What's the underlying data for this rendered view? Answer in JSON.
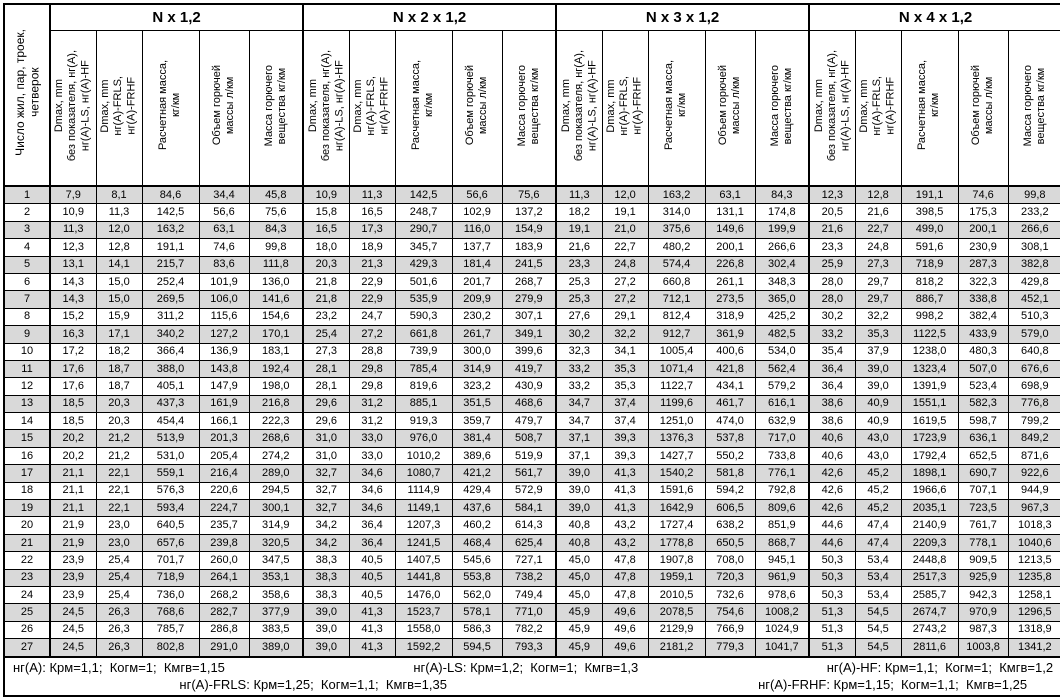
{
  "table": {
    "corner_header": "Число жил, пар, троек,\nчетверок",
    "groups": [
      {
        "title": "N x 1,2"
      },
      {
        "title": "N x 2 x 1,2"
      },
      {
        "title": "N x 3 x 1,2"
      },
      {
        "title": "N x 4 x 1,2"
      }
    ],
    "subheaders": [
      "Dmax, mm\nбез показателя, нг(А),\nнг(А)-LS, нг(А)-HF",
      "Dmax, mm\nнг(А)-FRLS,\nнг(А)-FRHF",
      "Расчетная масса,\nкг/км",
      "Объем горючей\nмассы л/км",
      "Масса горючего\nвещества кг/км"
    ],
    "rows": [
      [
        "1",
        "7,9",
        "8,1",
        "84,6",
        "34,4",
        "45,8",
        "10,9",
        "11,3",
        "142,5",
        "56,6",
        "75,6",
        "11,3",
        "12,0",
        "163,2",
        "63,1",
        "84,3",
        "12,3",
        "12,8",
        "191,1",
        "74,6",
        "99,8"
      ],
      [
        "2",
        "10,9",
        "11,3",
        "142,5",
        "56,6",
        "75,6",
        "15,8",
        "16,5",
        "248,7",
        "102,9",
        "137,2",
        "18,2",
        "19,1",
        "314,0",
        "131,1",
        "174,8",
        "20,5",
        "21,6",
        "398,5",
        "175,3",
        "233,2"
      ],
      [
        "3",
        "11,3",
        "12,0",
        "163,2",
        "63,1",
        "84,3",
        "16,5",
        "17,3",
        "290,7",
        "116,0",
        "154,9",
        "19,1",
        "21,0",
        "375,6",
        "149,6",
        "199,9",
        "21,6",
        "22,7",
        "499,0",
        "200,1",
        "266,6"
      ],
      [
        "4",
        "12,3",
        "12,8",
        "191,1",
        "74,6",
        "99,8",
        "18,0",
        "18,9",
        "345,7",
        "137,7",
        "183,9",
        "21,6",
        "22,7",
        "480,2",
        "200,1",
        "266,6",
        "23,3",
        "24,8",
        "591,6",
        "230,9",
        "308,1"
      ],
      [
        "5",
        "13,1",
        "14,1",
        "215,7",
        "83,6",
        "111,8",
        "20,3",
        "21,3",
        "429,3",
        "181,4",
        "241,5",
        "23,3",
        "24,8",
        "574,4",
        "226,8",
        "302,4",
        "25,9",
        "27,3",
        "718,9",
        "287,3",
        "382,8"
      ],
      [
        "6",
        "14,3",
        "15,0",
        "252,4",
        "101,9",
        "136,0",
        "21,8",
        "22,9",
        "501,6",
        "201,7",
        "268,7",
        "25,3",
        "27,2",
        "660,8",
        "261,1",
        "348,3",
        "28,0",
        "29,7",
        "818,2",
        "322,3",
        "429,8"
      ],
      [
        "7",
        "14,3",
        "15,0",
        "269,5",
        "106,0",
        "141,6",
        "21,8",
        "22,9",
        "535,9",
        "209,9",
        "279,9",
        "25,3",
        "27,2",
        "712,1",
        "273,5",
        "365,0",
        "28,0",
        "29,7",
        "886,7",
        "338,8",
        "452,1"
      ],
      [
        "8",
        "15,2",
        "15,9",
        "311,2",
        "115,6",
        "154,6",
        "23,2",
        "24,7",
        "590,3",
        "230,2",
        "307,1",
        "27,6",
        "29,1",
        "812,4",
        "318,9",
        "425,2",
        "30,2",
        "32,2",
        "998,2",
        "382,4",
        "510,3"
      ],
      [
        "9",
        "16,3",
        "17,1",
        "340,2",
        "127,2",
        "170,1",
        "25,4",
        "27,2",
        "661,8",
        "261,7",
        "349,1",
        "30,2",
        "32,2",
        "912,7",
        "361,9",
        "482,5",
        "33,2",
        "35,3",
        "1122,5",
        "433,9",
        "579,0"
      ],
      [
        "10",
        "17,2",
        "18,2",
        "366,4",
        "136,9",
        "183,1",
        "27,3",
        "28,8",
        "739,9",
        "300,0",
        "399,6",
        "32,3",
        "34,1",
        "1005,4",
        "400,6",
        "534,0",
        "35,4",
        "37,9",
        "1238,0",
        "480,3",
        "640,8"
      ],
      [
        "11",
        "17,6",
        "18,7",
        "388,0",
        "143,8",
        "192,4",
        "28,1",
        "29,8",
        "785,4",
        "314,9",
        "419,7",
        "33,2",
        "35,3",
        "1071,4",
        "421,8",
        "562,4",
        "36,4",
        "39,0",
        "1323,4",
        "507,0",
        "676,6"
      ],
      [
        "12",
        "17,6",
        "18,7",
        "405,1",
        "147,9",
        "198,0",
        "28,1",
        "29,8",
        "819,6",
        "323,2",
        "430,9",
        "33,2",
        "35,3",
        "1122,7",
        "434,1",
        "579,2",
        "36,4",
        "39,0",
        "1391,9",
        "523,4",
        "698,9"
      ],
      [
        "13",
        "18,5",
        "20,3",
        "437,3",
        "161,9",
        "216,8",
        "29,6",
        "31,2",
        "885,1",
        "351,5",
        "468,6",
        "34,7",
        "37,4",
        "1199,6",
        "461,7",
        "616,1",
        "38,6",
        "40,9",
        "1551,1",
        "582,3",
        "776,8"
      ],
      [
        "14",
        "18,5",
        "20,3",
        "454,4",
        "166,1",
        "222,3",
        "29,6",
        "31,2",
        "919,3",
        "359,7",
        "479,7",
        "34,7",
        "37,4",
        "1251,0",
        "474,0",
        "632,9",
        "38,6",
        "40,9",
        "1619,5",
        "598,7",
        "799,2"
      ],
      [
        "15",
        "20,2",
        "21,2",
        "513,9",
        "201,3",
        "268,6",
        "31,0",
        "33,0",
        "976,0",
        "381,4",
        "508,7",
        "37,1",
        "39,3",
        "1376,3",
        "537,8",
        "717,0",
        "40,6",
        "43,0",
        "1723,9",
        "636,1",
        "849,2"
      ],
      [
        "16",
        "20,2",
        "21,2",
        "531,0",
        "205,4",
        "274,2",
        "31,0",
        "33,0",
        "1010,2",
        "389,6",
        "519,9",
        "37,1",
        "39,3",
        "1427,7",
        "550,2",
        "733,8",
        "40,6",
        "43,0",
        "1792,4",
        "652,5",
        "871,6"
      ],
      [
        "17",
        "21,1",
        "22,1",
        "559,1",
        "216,4",
        "289,0",
        "32,7",
        "34,6",
        "1080,7",
        "421,2",
        "561,7",
        "39,0",
        "41,3",
        "1540,2",
        "581,8",
        "776,1",
        "42,6",
        "45,2",
        "1898,1",
        "690,7",
        "922,6"
      ],
      [
        "18",
        "21,1",
        "22,1",
        "576,3",
        "220,6",
        "294,5",
        "32,7",
        "34,6",
        "1114,9",
        "429,4",
        "572,9",
        "39,0",
        "41,3",
        "1591,6",
        "594,2",
        "792,8",
        "42,6",
        "45,2",
        "1966,6",
        "707,1",
        "944,9"
      ],
      [
        "19",
        "21,1",
        "22,1",
        "593,4",
        "224,7",
        "300,1",
        "32,7",
        "34,6",
        "1149,1",
        "437,6",
        "584,1",
        "39,0",
        "41,3",
        "1642,9",
        "606,5",
        "809,6",
        "42,6",
        "45,2",
        "2035,1",
        "723,5",
        "967,3"
      ],
      [
        "20",
        "21,9",
        "23,0",
        "640,5",
        "235,7",
        "314,9",
        "34,2",
        "36,4",
        "1207,3",
        "460,2",
        "614,3",
        "40,8",
        "43,2",
        "1727,4",
        "638,2",
        "851,9",
        "44,6",
        "47,4",
        "2140,9",
        "761,7",
        "1018,3"
      ],
      [
        "21",
        "21,9",
        "23,0",
        "657,6",
        "239,8",
        "320,5",
        "34,2",
        "36,4",
        "1241,5",
        "468,4",
        "625,4",
        "40,8",
        "43,2",
        "1778,8",
        "650,5",
        "868,7",
        "44,6",
        "47,4",
        "2209,3",
        "778,1",
        "1040,6"
      ],
      [
        "22",
        "23,9",
        "25,4",
        "701,7",
        "260,0",
        "347,5",
        "38,3",
        "40,5",
        "1407,5",
        "545,6",
        "727,1",
        "45,0",
        "47,8",
        "1907,8",
        "708,0",
        "945,1",
        "50,3",
        "53,4",
        "2448,8",
        "909,5",
        "1213,5"
      ],
      [
        "23",
        "23,9",
        "25,4",
        "718,9",
        "264,1",
        "353,1",
        "38,3",
        "40,5",
        "1441,8",
        "553,8",
        "738,2",
        "45,0",
        "47,8",
        "1959,1",
        "720,3",
        "961,9",
        "50,3",
        "53,4",
        "2517,3",
        "925,9",
        "1235,8"
      ],
      [
        "24",
        "23,9",
        "25,4",
        "736,0",
        "268,2",
        "358,6",
        "38,3",
        "40,5",
        "1476,0",
        "562,0",
        "749,4",
        "45,0",
        "47,8",
        "2010,5",
        "732,6",
        "978,6",
        "50,3",
        "53,4",
        "2585,7",
        "942,3",
        "1258,1"
      ],
      [
        "25",
        "24,5",
        "26,3",
        "768,6",
        "282,7",
        "377,9",
        "39,0",
        "41,3",
        "1523,7",
        "578,1",
        "771,0",
        "45,9",
        "49,6",
        "2078,5",
        "754,6",
        "1008,2",
        "51,3",
        "54,5",
        "2674,7",
        "970,9",
        "1296,5"
      ],
      [
        "26",
        "24,5",
        "26,3",
        "785,7",
        "286,8",
        "383,5",
        "39,0",
        "41,3",
        "1558,0",
        "586,3",
        "782,2",
        "45,9",
        "49,6",
        "2129,9",
        "766,9",
        "1024,9",
        "51,3",
        "54,5",
        "2743,2",
        "987,3",
        "1318,9"
      ],
      [
        "27",
        "24,5",
        "26,3",
        "802,8",
        "291,0",
        "389,0",
        "39,0",
        "41,3",
        "1592,2",
        "594,5",
        "793,3",
        "45,9",
        "49,6",
        "2181,2",
        "779,3",
        "1041,7",
        "51,3",
        "54,5",
        "2811,6",
        "1003,8",
        "1341,2"
      ]
    ]
  },
  "footer": {
    "nga": "нг(А): Крм=1,1;  Когм=1;  Кмгв=1,15",
    "ngals": "нг(А)-LS: Крм=1,2;  Когм=1;  Кмгв=1,3",
    "ngahf": "нг(А)-HF: Крм=1,1;  Когм=1;  Кмгв=1,2",
    "frls": "нг(А)-FRLS: Крм=1,25;  Когм=1,1;  Кмгв=1,35",
    "frhf": "нг(А)-FRHF: Крм=1,15;  Когм=1,1;  Кмгв=1,25"
  },
  "colors": {
    "stripe": "#d9d9d9",
    "border": "#000000",
    "background": "#ffffff"
  }
}
